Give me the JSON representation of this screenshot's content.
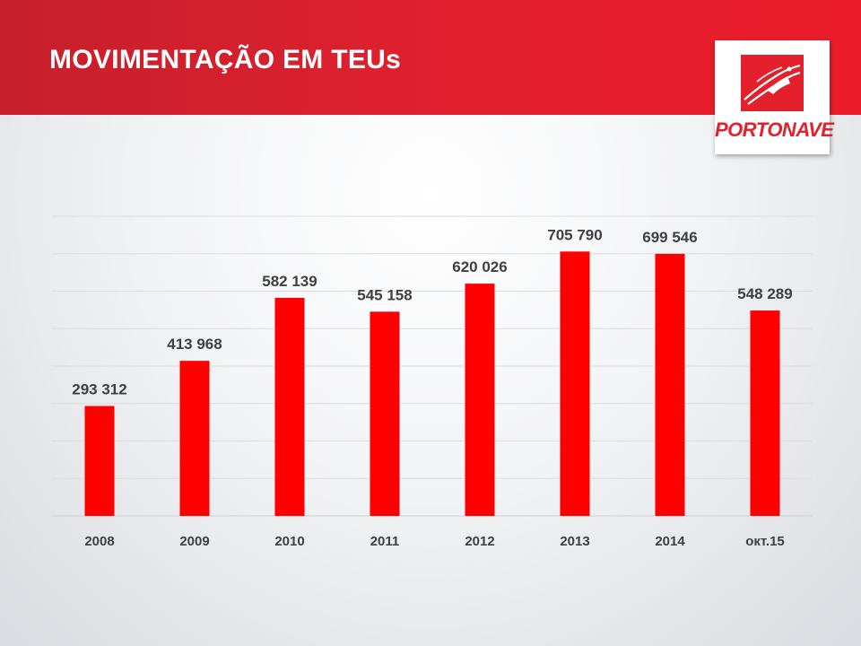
{
  "header": {
    "title": "MOVIMENTAÇÃO EM TEUs",
    "accent_color": "#e2202e"
  },
  "logo": {
    "text": "PORTONAVE",
    "icon": "ship-icon",
    "color": "#e3202b"
  },
  "chart_data": {
    "type": "bar",
    "title": "",
    "xlabel": "",
    "ylabel": "",
    "categories": [
      "2008",
      "2009",
      "2010",
      "2011",
      "2012",
      "2013",
      "2014",
      "окт.15"
    ],
    "values": [
      293312,
      413968,
      582139,
      545158,
      620026,
      705790,
      699546,
      548289
    ],
    "value_labels": [
      "293 312",
      "413 968",
      "582 139",
      "545 158",
      "620 026",
      "705 790",
      "699 546",
      "548 289"
    ],
    "ylim": [
      0,
      800000
    ],
    "gridline_step": 100000,
    "grid": true,
    "legend": "none",
    "bar_color": "#ff0000"
  }
}
